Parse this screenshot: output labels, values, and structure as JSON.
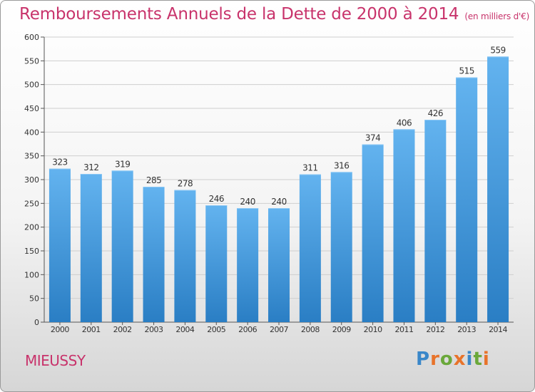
{
  "header": {
    "title": "Remboursements Annuels de la Dette de 2000 à 2014",
    "unit": "(en milliers d'€)"
  },
  "footer": {
    "commune": "MIEUSSY",
    "brand_letters": [
      "P",
      "r",
      "o",
      "x",
      "i",
      "t",
      "i"
    ]
  },
  "colors": {
    "title": "#c8336b",
    "bar_top": "#63b3ef",
    "bar_bottom": "#2a7ec4",
    "grid": "#cccccc"
  },
  "chart_data": {
    "type": "bar",
    "title": "Remboursements Annuels de la Dette de 2000 à 2014",
    "xlabel": "",
    "ylabel": "",
    "ylim": [
      0,
      600
    ],
    "yticks": [
      0,
      50,
      100,
      150,
      200,
      250,
      300,
      350,
      400,
      450,
      500,
      550,
      600
    ],
    "categories": [
      "2000",
      "2001",
      "2002",
      "2003",
      "2004",
      "2005",
      "2006",
      "2007",
      "2008",
      "2009",
      "2010",
      "2011",
      "2012",
      "2013",
      "2014"
    ],
    "values": [
      323,
      312,
      319,
      285,
      278,
      246,
      240,
      240,
      311,
      316,
      374,
      406,
      426,
      515,
      559
    ]
  }
}
